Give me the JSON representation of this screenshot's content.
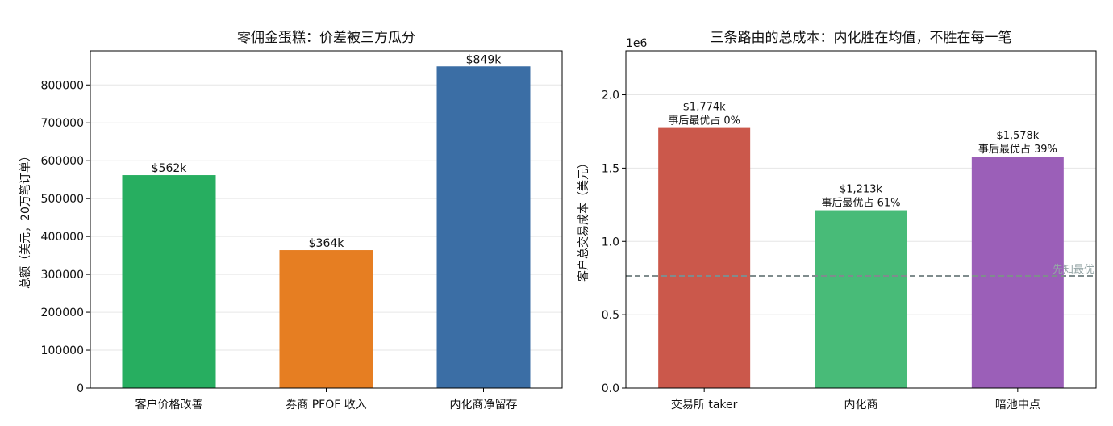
{
  "chart_data": [
    {
      "type": "bar",
      "title": "零佣金蛋糕：价差被三方瓜分",
      "ylabel": "总额（美元，20万笔订单）",
      "xlabel": "",
      "ylim": [
        0,
        890000
      ],
      "yticks": [
        0,
        100000,
        200000,
        300000,
        400000,
        500000,
        600000,
        700000,
        800000
      ],
      "ytick_labels": [
        "0",
        "100000",
        "200000",
        "300000",
        "400000",
        "500000",
        "600000",
        "700000",
        "800000"
      ],
      "grid": true,
      "categories": [
        "客户价格改善",
        "券商 PFOF 收入",
        "内化商净留存"
      ],
      "values": [
        562000,
        364000,
        849000
      ],
      "data_labels": [
        "$562k",
        "$364k",
        "$849k"
      ],
      "colors": [
        "#27ae60",
        "#e67e22",
        "#3b6ea5"
      ]
    },
    {
      "type": "bar",
      "title": "三条路由的总成本：内化胜在均值，不胜在每一笔",
      "ylabel": "客户总交易成本（美元）",
      "xlabel": "",
      "axis_multiplier": "1e6",
      "ylim": [
        0,
        2300000
      ],
      "yticks": [
        0,
        500000,
        1000000,
        1500000,
        2000000
      ],
      "ytick_labels": [
        "0.0",
        "0.5",
        "1.0",
        "1.5",
        "2.0"
      ],
      "grid": true,
      "categories": [
        "交易所 taker",
        "内化商",
        "暗池中点"
      ],
      "values": [
        1774000,
        1213000,
        1578000
      ],
      "data_labels": [
        "$1,774k",
        "$1,213k",
        "$1,578k"
      ],
      "data_labels_2": [
        "事后最优占 0%",
        "事后最优占 61%",
        "事后最优占 39%"
      ],
      "colors": [
        "#cb584b",
        "#48bb78",
        "#9b5fb8"
      ],
      "reference_line": {
        "value": 765000,
        "label": "先知最优",
        "color": "#7f8c8d"
      }
    }
  ]
}
